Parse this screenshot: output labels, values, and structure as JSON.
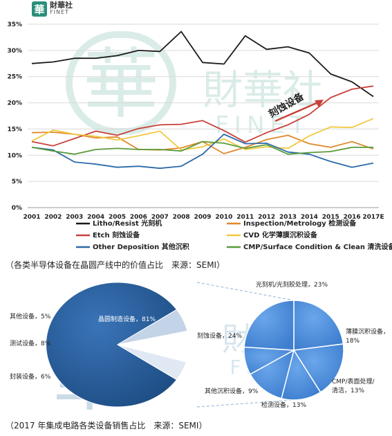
{
  "logo": {
    "mark": "華",
    "name_cn": "財華社",
    "name_en": "FINET"
  },
  "watermark": {
    "name_cn": "財華社",
    "name_en": "FINET",
    "mark": "華"
  },
  "captions": {
    "line_chart": "（各类半导体设备在晶圆产线中的价值占比　来源：SEMI）",
    "pie_chart": "（2017 年集成电路各类设备销售占比　来源：SEMI）"
  },
  "chart_data": [
    {
      "type": "line",
      "annotation": "刻蚀设备",
      "x": [
        "2001",
        "2002",
        "2003",
        "2004",
        "2005",
        "2006",
        "2007",
        "2008",
        "2009",
        "2010",
        "2011",
        "2012",
        "2013",
        "2014",
        "2015",
        "2016",
        "2017E"
      ],
      "y_ticks": [
        "0%",
        "5%",
        "10%",
        "15%",
        "20%",
        "25%",
        "30%",
        "35%"
      ],
      "ylim": [
        0,
        35
      ],
      "grid": true,
      "legend_position": "bottom",
      "colors": {
        "litho": "#1a1a1a",
        "inspection": "#e0882a",
        "etch": "#c8403a",
        "cvd": "#f0c840",
        "other": "#2a6aa8",
        "cmp": "#5a9a3a"
      },
      "series": [
        {
          "key": "litho",
          "name": "Litho/Resist 光刻机",
          "values": [
            27.5,
            27.8,
            28.5,
            28.5,
            29.0,
            30.0,
            29.8,
            33.6,
            27.7,
            27.4,
            32.8,
            30.2,
            30.7,
            29.5,
            25.5,
            24.0,
            21.2
          ]
        },
        {
          "key": "inspection",
          "name": "Inspection/Metrology 检测设备",
          "values": [
            14.3,
            14.4,
            14.0,
            13.3,
            13.5,
            11.1,
            11.0,
            11.4,
            12.6,
            10.3,
            11.5,
            13.0,
            13.8,
            12.2,
            11.5,
            12.6,
            11.2
          ]
        },
        {
          "key": "etch",
          "name": "Etch 刻蚀设备",
          "values": [
            12.6,
            11.8,
            13.2,
            14.6,
            13.8,
            15.1,
            15.8,
            15.9,
            16.6,
            14.7,
            12.5,
            14.3,
            15.8,
            17.8,
            21.0,
            22.6,
            23.2
          ]
        },
        {
          "key": "cvd",
          "name": "CVD 化学薄膜沉积设备",
          "values": [
            12.7,
            14.8,
            14.0,
            13.6,
            12.9,
            13.7,
            14.6,
            11.0,
            11.6,
            13.1,
            11.1,
            11.6,
            11.3,
            13.7,
            15.4,
            15.3,
            17.0
          ]
        },
        {
          "key": "other",
          "name": "Other Deposition 其他沉积",
          "values": [
            11.5,
            11.0,
            8.7,
            8.3,
            7.7,
            7.9,
            7.5,
            7.9,
            10.2,
            14.0,
            12.2,
            12.3,
            10.6,
            10.2,
            8.8,
            7.7,
            8.5
          ]
        },
        {
          "key": "cmp",
          "name": "CMP/Surface Condition & Clean 清洗设备",
          "values": [
            11.5,
            10.8,
            10.2,
            11.1,
            11.3,
            11.1,
            11.1,
            10.8,
            12.6,
            12.3,
            11.3,
            12.0,
            10.2,
            10.5,
            10.7,
            11.5,
            11.5
          ]
        }
      ]
    },
    {
      "type": "pie",
      "title": "",
      "left_pie": {
        "color": "#1f4f86",
        "slices": [
          {
            "label": "晶圆制造设备，81%",
            "value": 81
          },
          {
            "label": "封装设备，6%",
            "value": 6
          },
          {
            "label": "测试设备，8%",
            "value": 8
          },
          {
            "label": "其他设备，5%",
            "value": 5
          }
        ]
      },
      "right_pie": {
        "color": "#3f7fd0",
        "slices": [
          {
            "label": "光刻机/光刻胶处理，23%",
            "value": 23
          },
          {
            "label": "薄膜沉积设备，18%",
            "value": 18
          },
          {
            "label": "CMP/表面处理/清洁，13%",
            "value": 13
          },
          {
            "label": "检测设备，13%",
            "value": 13
          },
          {
            "label": "其他沉积设备，9%",
            "value": 9
          },
          {
            "label": "刻蚀设备，24%",
            "value": 24
          }
        ]
      }
    }
  ]
}
